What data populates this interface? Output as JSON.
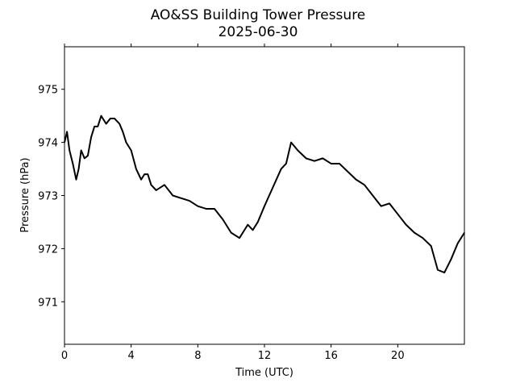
{
  "chart_data": {
    "type": "line",
    "title": "AO&SS Building Tower Pressure",
    "subtitle": "2025-06-30",
    "xlabel": "Time (UTC)",
    "ylabel": "Pressure (hPa)",
    "xlim": [
      0,
      24
    ],
    "ylim": [
      970.2,
      975.8
    ],
    "xticks": [
      0,
      4,
      8,
      12,
      16,
      20
    ],
    "yticks": [
      971,
      972,
      973,
      974,
      975
    ],
    "grid": false,
    "legend": "none",
    "line_color": "#000000",
    "series": [
      {
        "x": [
          0.0,
          0.15,
          0.3,
          0.5,
          0.7,
          0.85,
          1.0,
          1.2,
          1.4,
          1.6,
          1.8,
          2.0,
          2.2,
          2.5,
          2.75,
          3.0,
          3.3,
          3.5,
          3.7,
          4.0,
          4.3,
          4.6,
          4.8,
          5.0,
          5.2,
          5.5,
          6.0,
          6.5,
          7.0,
          7.5,
          8.0,
          8.5,
          9.0,
          9.5,
          10.0,
          10.5,
          11.0,
          11.3,
          11.6,
          12.0,
          12.5,
          13.0,
          13.3,
          13.6,
          14.0,
          14.5,
          15.0,
          15.5,
          16.0,
          16.5,
          17.0,
          17.5,
          18.0,
          18.5,
          19.0,
          19.5,
          20.0,
          20.5,
          21.0,
          21.5,
          22.0,
          22.4,
          22.8,
          23.2,
          23.6,
          24.0
        ],
        "y": [
          974.0,
          974.2,
          973.85,
          973.6,
          973.3,
          973.5,
          973.85,
          973.7,
          973.75,
          974.1,
          974.3,
          974.3,
          974.5,
          974.35,
          974.45,
          974.45,
          974.35,
          974.2,
          974.0,
          973.85,
          973.5,
          973.3,
          973.4,
          973.4,
          973.2,
          973.1,
          973.2,
          973.0,
          972.95,
          972.9,
          972.8,
          972.75,
          972.75,
          972.55,
          972.3,
          972.2,
          972.45,
          972.35,
          972.5,
          972.8,
          973.15,
          973.5,
          973.6,
          974.0,
          973.85,
          973.7,
          973.65,
          973.7,
          973.6,
          973.6,
          973.45,
          973.3,
          973.2,
          973.0,
          972.8,
          972.85,
          972.65,
          972.45,
          972.3,
          972.2,
          972.05,
          971.6,
          971.55,
          971.8,
          972.1,
          972.3
        ]
      }
    ]
  }
}
